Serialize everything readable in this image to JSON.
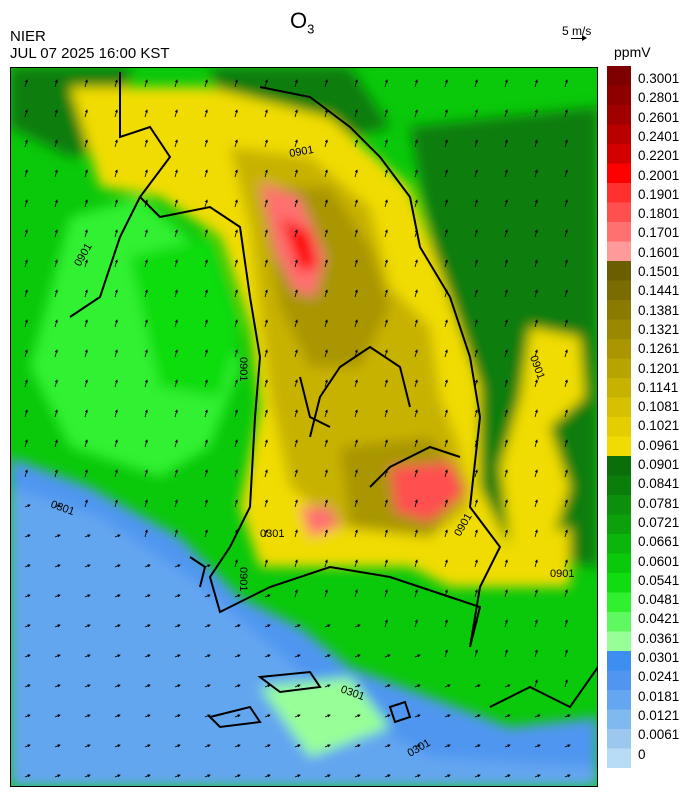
{
  "header": {
    "agency": "NIER",
    "datetime": "JUL 07 2025 16:00 KST",
    "title_main": "O",
    "title_sub": "3",
    "wind_reference": "5 m/s",
    "unit": "ppmV"
  },
  "legend": {
    "labels": [
      "0.3001",
      "0.2801",
      "0.2601",
      "0.2401",
      "0.2201",
      "0.2001",
      "0.1901",
      "0.1801",
      "0.1701",
      "0.1601",
      "0.1501",
      "0.1441",
      "0.1381",
      "0.1321",
      "0.1261",
      "0.1201",
      "0.1141",
      "0.1081",
      "0.1021",
      "0.0961",
      "0.0901",
      "0.0841",
      "0.0781",
      "0.0721",
      "0.0661",
      "0.0601",
      "0.0541",
      "0.0481",
      "0.0421",
      "0.0361",
      "0.0301",
      "0.0241",
      "0.0181",
      "0.0121",
      "0.0061",
      "0"
    ],
    "colors": [
      "#7f0000",
      "#8e0000",
      "#a10000",
      "#b80000",
      "#d20000",
      "#ff0000",
      "#ff3030",
      "#ff5050",
      "#ff7070",
      "#ff9a9a",
      "#6b5e00",
      "#7a6c00",
      "#8a7a00",
      "#998800",
      "#a99600",
      "#b8a400",
      "#c8b200",
      "#d6c000",
      "#e4ce00",
      "#f0dc00",
      "#0a6e0a",
      "#0b7d0b",
      "#0c8f0c",
      "#0ca10c",
      "#0bb50b",
      "#0ac80a",
      "#10dc10",
      "#30f030",
      "#60f860",
      "#98ff98",
      "#3d8ef0",
      "#5096f0",
      "#64a6f0",
      "#80b8f0",
      "#9cc8f0",
      "#b8dcf5"
    ]
  },
  "map": {
    "contour_labels": [
      "0901",
      "0901",
      "0901",
      "0901",
      "0901",
      "0901",
      "0901",
      "0301",
      "0301",
      "0301",
      "0301"
    ]
  }
}
